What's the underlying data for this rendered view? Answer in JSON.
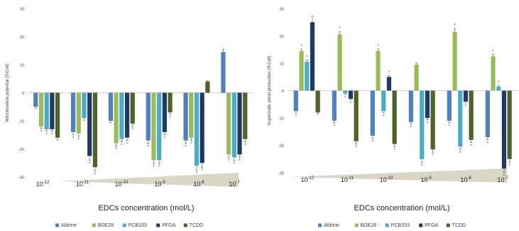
{
  "colors": {
    "Aldrine": "#4f81bd",
    "BDE28": "#9bbb59",
    "PCB153": "#4bacc6",
    "PFOA": "#1f3864",
    "TCDD": "#4f6228",
    "wedge": "#d9d6c6",
    "axis": "#d0d0d0",
    "text": "#404040"
  },
  "legend": [
    "Aldrine",
    "BDE28",
    "PCB153",
    "PFOA",
    "TCDD"
  ],
  "chart_data": [
    {
      "type": "bar",
      "ylabel": "Mitochondrial potential (R/Cell)",
      "xlabel": "EDCs concentration (mol/L)",
      "ylim": [
        -30,
        30
      ],
      "yticks": [
        "30",
        "20",
        "10",
        "0",
        "-10",
        "-20",
        "-30"
      ],
      "grid": false,
      "legend_position": "bottom",
      "categories": [
        {
          "base": "10",
          "exp": "-12"
        },
        {
          "base": "10",
          "exp": "-11"
        },
        {
          "base": "10",
          "exp": "-10"
        },
        {
          "base": "10",
          "exp": "-9"
        },
        {
          "base": "10",
          "exp": "-8"
        },
        {
          "base": "10",
          "exp": "-7"
        }
      ],
      "series": [
        {
          "name": "Aldrine",
          "values": [
            -5,
            -14,
            -10,
            -17,
            -17,
            14.5
          ],
          "errors": [
            0.5,
            1,
            0.7,
            1,
            1,
            1
          ],
          "stars": [
            false,
            true,
            false,
            true,
            true,
            false
          ]
        },
        {
          "name": "BDE28",
          "values": [
            -12,
            -14.5,
            -18,
            -24,
            -16,
            -22
          ],
          "errors": [
            0.7,
            1,
            1,
            1.2,
            1,
            1
          ],
          "stars": [
            true,
            true,
            true,
            true,
            true,
            true
          ]
        },
        {
          "name": "PCB153",
          "values": [
            -13,
            -9,
            -16.5,
            -24,
            -26,
            -23
          ],
          "errors": [
            0.7,
            0.8,
            1,
            1.2,
            1.5,
            1
          ],
          "stars": [
            true,
            false,
            true,
            true,
            true,
            true
          ]
        },
        {
          "name": "PFOA",
          "values": [
            -13,
            -22.5,
            -16,
            -14,
            -25,
            -22
          ],
          "errors": [
            0.7,
            1.5,
            1,
            1,
            1.5,
            1
          ],
          "stars": [
            true,
            true,
            true,
            true,
            true,
            true
          ]
        },
        {
          "name": "TCDD",
          "values": [
            -16,
            -26.5,
            -11,
            -7,
            4,
            -16.5
          ],
          "errors": [
            0.8,
            1.5,
            0.8,
            0.7,
            0.4,
            1
          ],
          "stars": [
            false,
            true,
            true,
            true,
            false,
            true
          ]
        }
      ]
    },
    {
      "type": "bar",
      "ylabel": "Superoxide anion production (R/Cell)",
      "xlabel": "EDCs concentration (mol/L)",
      "ylim": [
        -30,
        30
      ],
      "yticks": [
        "30",
        "20",
        "10",
        "0",
        "-10",
        "-20",
        "-30"
      ],
      "grid": false,
      "legend_position": "bottom",
      "categories": [
        {
          "base": "10",
          "exp": "-12"
        },
        {
          "base": "10",
          "exp": "-11"
        },
        {
          "base": "10",
          "exp": "-10"
        },
        {
          "base": "10",
          "exp": "-9"
        },
        {
          "base": "10",
          "exp": "-8"
        },
        {
          "base": "10",
          "exp": "-7"
        }
      ],
      "series": [
        {
          "name": "Aldrine",
          "values": [
            -7.5,
            -11,
            -16.5,
            -11.5,
            -11,
            -17
          ],
          "errors": [
            0.5,
            0.7,
            1,
            0.7,
            0.7,
            1
          ],
          "stars": [
            true,
            true,
            true,
            true,
            true,
            true
          ]
        },
        {
          "name": "BDE28",
          "values": [
            14.5,
            20.5,
            14.5,
            9.5,
            21.5,
            12.5
          ],
          "errors": [
            0.7,
            1,
            0.7,
            0.6,
            1.2,
            0.7
          ],
          "stars": [
            true,
            true,
            true,
            false,
            true,
            true
          ]
        },
        {
          "name": "PCB153",
          "values": [
            10.5,
            -1,
            -7.5,
            -25,
            -20.5,
            1.5
          ],
          "errors": [
            0.7,
            0.4,
            0.6,
            1.2,
            1,
            0.3
          ],
          "stars": [
            true,
            true,
            true,
            true,
            true,
            true
          ]
        },
        {
          "name": "PFOA",
          "values": [
            25,
            -3,
            5,
            -10,
            -4,
            -28.5
          ],
          "errors": [
            2.2,
            0.4,
            0.5,
            0.7,
            0.4,
            1.5
          ],
          "stars": [
            false,
            true,
            true,
            true,
            true,
            true
          ]
        },
        {
          "name": "TCDD",
          "values": [
            -8,
            -18.5,
            -19.5,
            -21.5,
            -18,
            -25
          ],
          "errors": [
            0.5,
            1,
            1,
            1,
            1,
            1.2
          ],
          "stars": [
            false,
            true,
            true,
            true,
            true,
            true
          ]
        }
      ]
    }
  ]
}
